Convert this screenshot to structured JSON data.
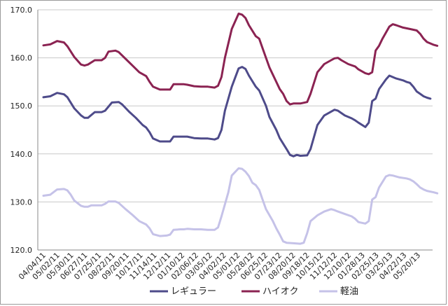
{
  "chart_data": {
    "type": "line",
    "title": "",
    "xlabel": "",
    "ylabel": "",
    "ylim": [
      120,
      170
    ],
    "y_ticks": [
      "120.0",
      "130.0",
      "140.0",
      "150.0",
      "160.0",
      "170.0"
    ],
    "x_tick_labels": [
      "04/04/11",
      "05/02/11",
      "05/30/11",
      "06/27/11",
      "07/25/11",
      "08/22/11",
      "09/20/11",
      "10/17/11",
      "11/14/11",
      "12/12/11",
      "01/10/12",
      "02/06/12",
      "03/05/12",
      "04/02/12",
      "05/01/12",
      "05/28/12",
      "06/25/12",
      "07/23/12",
      "08/20/12",
      "09/18/12",
      "10/15/12",
      "11/12/12",
      "12/10/12",
      "01/28/13",
      "02/25/13",
      "03/25/13",
      "04/22/13",
      "05/20/13"
    ],
    "grid": "horizontal",
    "legend_position": "bottom",
    "x_index_max": 112,
    "series": [
      {
        "name": "レギュラー",
        "color": "#4e4b8a",
        "points": [
          [
            0,
            151.8
          ],
          [
            2,
            152
          ],
          [
            4,
            152.7
          ],
          [
            6,
            152.4
          ],
          [
            7,
            151.8
          ],
          [
            9,
            149.5
          ],
          [
            11,
            148
          ],
          [
            12,
            147.5
          ],
          [
            13,
            147.5
          ],
          [
            15,
            148.7
          ],
          [
            17,
            148.7
          ],
          [
            18,
            149
          ],
          [
            20,
            150.7
          ],
          [
            22,
            150.8
          ],
          [
            23,
            150.3
          ],
          [
            25,
            148.8
          ],
          [
            27,
            147.5
          ],
          [
            29,
            146
          ],
          [
            30,
            145.5
          ],
          [
            31,
            144.5
          ],
          [
            32,
            143.2
          ],
          [
            34,
            142.6
          ],
          [
            36,
            142.6
          ],
          [
            37,
            142.6
          ],
          [
            38,
            143.6
          ],
          [
            40,
            143.6
          ],
          [
            41,
            143.6
          ],
          [
            42,
            143.6
          ],
          [
            44,
            143.3
          ],
          [
            46,
            143.2
          ],
          [
            48,
            143.2
          ],
          [
            50,
            143
          ],
          [
            51,
            143.3
          ],
          [
            52,
            145
          ],
          [
            53,
            149
          ],
          [
            55,
            154
          ],
          [
            57,
            157.8
          ],
          [
            58,
            158.1
          ],
          [
            59,
            157.7
          ],
          [
            60,
            156.3
          ],
          [
            62,
            154
          ],
          [
            63,
            153.2
          ],
          [
            65,
            150
          ],
          [
            66,
            147.7
          ],
          [
            68,
            145
          ],
          [
            69,
            143.3
          ],
          [
            71,
            141
          ],
          [
            72,
            139.8
          ],
          [
            73,
            139.5
          ],
          [
            74,
            139.8
          ],
          [
            75,
            139.6
          ],
          [
            77,
            139.7
          ],
          [
            78,
            141
          ],
          [
            79,
            143.5
          ],
          [
            80,
            146
          ],
          [
            82,
            148
          ],
          [
            84,
            148.8
          ],
          [
            85,
            149.2
          ],
          [
            86,
            149
          ],
          [
            88,
            148
          ],
          [
            90,
            147.4
          ],
          [
            91,
            147
          ],
          [
            92,
            146.5
          ],
          [
            94,
            145.6
          ],
          [
            95,
            146.5
          ],
          [
            96,
            151
          ],
          [
            97,
            151.5
          ],
          [
            98,
            153.5
          ],
          [
            100,
            155.5
          ],
          [
            101,
            156.3
          ],
          [
            103,
            155.7
          ],
          [
            105,
            155.3
          ],
          [
            106,
            155
          ],
          [
            107,
            154.8
          ],
          [
            108,
            154
          ],
          [
            109,
            153
          ],
          [
            110,
            152.5
          ],
          [
            111,
            152
          ],
          [
            112,
            151.7
          ],
          [
            113,
            151.5
          ]
        ]
      },
      {
        "name": "ハイオク",
        "color": "#8b2352",
        "points": [
          [
            0,
            162.6
          ],
          [
            2,
            162.8
          ],
          [
            4,
            163.5
          ],
          [
            6,
            163.2
          ],
          [
            7,
            162.4
          ],
          [
            9,
            160.2
          ],
          [
            11,
            158.6
          ],
          [
            12,
            158.4
          ],
          [
            13,
            158.6
          ],
          [
            15,
            159.5
          ],
          [
            17,
            159.5
          ],
          [
            18,
            160
          ],
          [
            19,
            161.3
          ],
          [
            21,
            161.5
          ],
          [
            22,
            161.2
          ],
          [
            24,
            159.8
          ],
          [
            26,
            158.4
          ],
          [
            28,
            157
          ],
          [
            30,
            156.2
          ],
          [
            31,
            155
          ],
          [
            32,
            154
          ],
          [
            34,
            153.4
          ],
          [
            36,
            153.4
          ],
          [
            37,
            153.4
          ],
          [
            38,
            154.5
          ],
          [
            40,
            154.5
          ],
          [
            41,
            154.5
          ],
          [
            42,
            154.4
          ],
          [
            44,
            154.1
          ],
          [
            46,
            154
          ],
          [
            48,
            154
          ],
          [
            50,
            153.8
          ],
          [
            51,
            154.2
          ],
          [
            52,
            156
          ],
          [
            53,
            160
          ],
          [
            55,
            166
          ],
          [
            57,
            169.2
          ],
          [
            58,
            169
          ],
          [
            59,
            168.3
          ],
          [
            60,
            166.8
          ],
          [
            62,
            164.5
          ],
          [
            63,
            164
          ],
          [
            64,
            162
          ],
          [
            65,
            160
          ],
          [
            66,
            158
          ],
          [
            68,
            155
          ],
          [
            69,
            153.5
          ],
          [
            70,
            152.5
          ],
          [
            71,
            151
          ],
          [
            72,
            150.3
          ],
          [
            73,
            150.5
          ],
          [
            75,
            150.5
          ],
          [
            77,
            150.8
          ],
          [
            78,
            152.5
          ],
          [
            80,
            157
          ],
          [
            82,
            158.7
          ],
          [
            84,
            159.5
          ],
          [
            85,
            159.9
          ],
          [
            86,
            160
          ],
          [
            87,
            159.5
          ],
          [
            89,
            158.7
          ],
          [
            91,
            158.2
          ],
          [
            92,
            157.6
          ],
          [
            94,
            156.8
          ],
          [
            95,
            156.6
          ],
          [
            96,
            157
          ],
          [
            97,
            161.5
          ],
          [
            98,
            162.5
          ],
          [
            99,
            164
          ],
          [
            101,
            166.5
          ],
          [
            102,
            167
          ],
          [
            103,
            166.8
          ],
          [
            105,
            166.3
          ],
          [
            107,
            166
          ],
          [
            109,
            165.7
          ],
          [
            110,
            165
          ],
          [
            111,
            164
          ],
          [
            112,
            163.3
          ],
          [
            114,
            162.7
          ],
          [
            115,
            162.5
          ]
        ]
      },
      {
        "name": "軽油",
        "color": "#c5c2e8",
        "points": [
          [
            0,
            131.3
          ],
          [
            2,
            131.5
          ],
          [
            4,
            132.6
          ],
          [
            6,
            132.7
          ],
          [
            7,
            132.4
          ],
          [
            8,
            131.5
          ],
          [
            9,
            130.3
          ],
          [
            11,
            129.2
          ],
          [
            12,
            129
          ],
          [
            13,
            129
          ],
          [
            14,
            129.3
          ],
          [
            15,
            129.3
          ],
          [
            17,
            129.3
          ],
          [
            18,
            129.6
          ],
          [
            19,
            130.1
          ],
          [
            21,
            130.1
          ],
          [
            22,
            129.8
          ],
          [
            24,
            128.5
          ],
          [
            26,
            127.3
          ],
          [
            28,
            126
          ],
          [
            30,
            125.3
          ],
          [
            31,
            124.5
          ],
          [
            32,
            123.3
          ],
          [
            34,
            122.9
          ],
          [
            36,
            123
          ],
          [
            37,
            123.2
          ],
          [
            38,
            124.2
          ],
          [
            40,
            124.3
          ],
          [
            41,
            124.3
          ],
          [
            42,
            124.4
          ],
          [
            44,
            124.3
          ],
          [
            46,
            124.3
          ],
          [
            48,
            124.2
          ],
          [
            50,
            124.2
          ],
          [
            51,
            124.7
          ],
          [
            52,
            127
          ],
          [
            54,
            132
          ],
          [
            55,
            135.5
          ],
          [
            57,
            137
          ],
          [
            58,
            136.9
          ],
          [
            59,
            136.3
          ],
          [
            60,
            135.4
          ],
          [
            61,
            134
          ],
          [
            62,
            133.5
          ],
          [
            63,
            132.5
          ],
          [
            64,
            130.5
          ],
          [
            65,
            128.5
          ],
          [
            67,
            126
          ],
          [
            68,
            124.5
          ],
          [
            69,
            123.2
          ],
          [
            70,
            121.8
          ],
          [
            71,
            121.5
          ],
          [
            73,
            121.4
          ],
          [
            75,
            121.3
          ],
          [
            76,
            121.5
          ],
          [
            77,
            123.5
          ],
          [
            78,
            126
          ],
          [
            80,
            127.2
          ],
          [
            82,
            128
          ],
          [
            84,
            128.5
          ],
          [
            85,
            128.3
          ],
          [
            86,
            128
          ],
          [
            88,
            127.5
          ],
          [
            90,
            127
          ],
          [
            91,
            126.5
          ],
          [
            92,
            125.8
          ],
          [
            94,
            125.5
          ],
          [
            95,
            126
          ],
          [
            96,
            130.5
          ],
          [
            97,
            131
          ],
          [
            98,
            133
          ],
          [
            100,
            135.3
          ],
          [
            101,
            135.6
          ],
          [
            102,
            135.5
          ],
          [
            104,
            135.1
          ],
          [
            106,
            134.9
          ],
          [
            107,
            134.7
          ],
          [
            108,
            134.3
          ],
          [
            109,
            133.7
          ],
          [
            110,
            133
          ],
          [
            111,
            132.6
          ],
          [
            112,
            132.3
          ],
          [
            114,
            132
          ],
          [
            115,
            131.8
          ]
        ]
      }
    ]
  }
}
